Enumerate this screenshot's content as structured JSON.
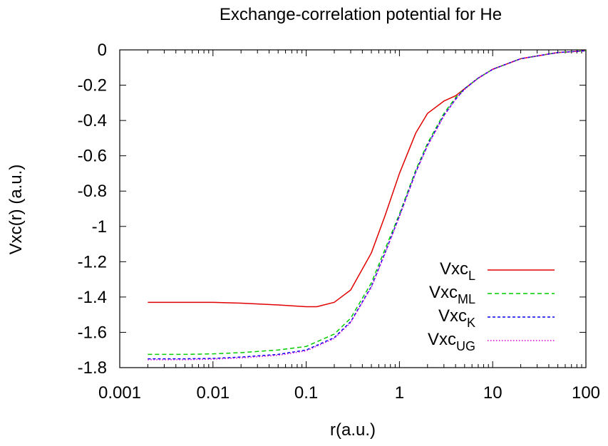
{
  "chart_data": {
    "type": "line",
    "title": "Exchange-correlation potential for He",
    "xlabel": "r(a.u.)",
    "ylabel": "Vxc(r) (a.u.)",
    "xscale": "log",
    "xlim": [
      0.001,
      100
    ],
    "ylim": [
      -1.8,
      0
    ],
    "xticks": [
      {
        "value": 0.001,
        "label": "0.001"
      },
      {
        "value": 0.01,
        "label": "0.01"
      },
      {
        "value": 0.1,
        "label": "0.1"
      },
      {
        "value": 1,
        "label": "1"
      },
      {
        "value": 10,
        "label": "10"
      },
      {
        "value": 100,
        "label": "100"
      }
    ],
    "yticks": [
      {
        "value": 0,
        "label": "0"
      },
      {
        "value": -0.2,
        "label": "-0.2"
      },
      {
        "value": -0.4,
        "label": "-0.4"
      },
      {
        "value": -0.6,
        "label": "-0.6"
      },
      {
        "value": -0.8,
        "label": "-0.8"
      },
      {
        "value": -1,
        "label": "-1"
      },
      {
        "value": -1.2,
        "label": "-1.2"
      },
      {
        "value": -1.4,
        "label": "-1.4"
      },
      {
        "value": -1.6,
        "label": "-1.6"
      },
      {
        "value": -1.8,
        "label": "-1.8"
      }
    ],
    "grid": false,
    "legend_position": "bottom-right",
    "series": [
      {
        "name": "Vxc",
        "sub": "L",
        "color": "#e00000",
        "dash": "solid",
        "x": [
          0.002,
          0.005,
          0.01,
          0.02,
          0.05,
          0.1,
          0.13,
          0.2,
          0.3,
          0.5,
          0.7,
          1.0,
          1.5,
          2.0,
          3.0,
          4.0,
          5.0,
          7.0,
          10.0,
          20.0,
          50.0,
          100.0
        ],
        "y": [
          -1.43,
          -1.43,
          -1.43,
          -1.435,
          -1.445,
          -1.455,
          -1.455,
          -1.43,
          -1.36,
          -1.15,
          -0.94,
          -0.7,
          -0.47,
          -0.36,
          -0.29,
          -0.26,
          -0.22,
          -0.16,
          -0.11,
          -0.05,
          -0.015,
          -0.005
        ]
      },
      {
        "name": "Vxc",
        "sub": "ML",
        "color": "#00cc00",
        "dash": "6,4",
        "x": [
          0.002,
          0.005,
          0.01,
          0.02,
          0.05,
          0.1,
          0.2,
          0.3,
          0.5,
          0.7,
          1.0,
          1.5,
          2.0,
          3.0,
          4.0,
          5.0,
          7.0,
          10.0,
          20.0,
          50.0,
          100.0
        ],
        "y": [
          -1.725,
          -1.725,
          -1.722,
          -1.715,
          -1.7,
          -1.68,
          -1.61,
          -1.52,
          -1.32,
          -1.13,
          -0.93,
          -0.68,
          -0.53,
          -0.36,
          -0.27,
          -0.22,
          -0.16,
          -0.11,
          -0.05,
          -0.015,
          -0.005
        ]
      },
      {
        "name": "Vxc",
        "sub": "K",
        "color": "#0000ee",
        "dash": "4,3",
        "x": [
          0.002,
          0.005,
          0.01,
          0.02,
          0.05,
          0.1,
          0.2,
          0.3,
          0.5,
          0.7,
          1.0,
          1.5,
          2.0,
          3.0,
          4.0,
          5.0,
          7.0,
          10.0,
          20.0,
          50.0,
          100.0
        ],
        "y": [
          -1.75,
          -1.75,
          -1.748,
          -1.74,
          -1.725,
          -1.7,
          -1.63,
          -1.54,
          -1.34,
          -1.15,
          -0.94,
          -0.69,
          -0.54,
          -0.37,
          -0.28,
          -0.22,
          -0.16,
          -0.11,
          -0.05,
          -0.015,
          -0.005
        ]
      },
      {
        "name": "Vxc",
        "sub": "UG",
        "color": "#dd00dd",
        "dash": "1.5,2.5",
        "x": [
          0.002,
          0.005,
          0.01,
          0.02,
          0.05,
          0.1,
          0.2,
          0.3,
          0.5,
          0.7,
          1.0,
          1.5,
          2.0,
          3.0,
          4.0,
          5.0,
          7.0,
          10.0,
          20.0,
          50.0,
          100.0
        ],
        "y": [
          -1.755,
          -1.755,
          -1.752,
          -1.745,
          -1.73,
          -1.705,
          -1.635,
          -1.545,
          -1.345,
          -1.155,
          -0.945,
          -0.695,
          -0.545,
          -0.375,
          -0.28,
          -0.225,
          -0.16,
          -0.11,
          -0.05,
          -0.015,
          -0.005
        ]
      }
    ]
  }
}
